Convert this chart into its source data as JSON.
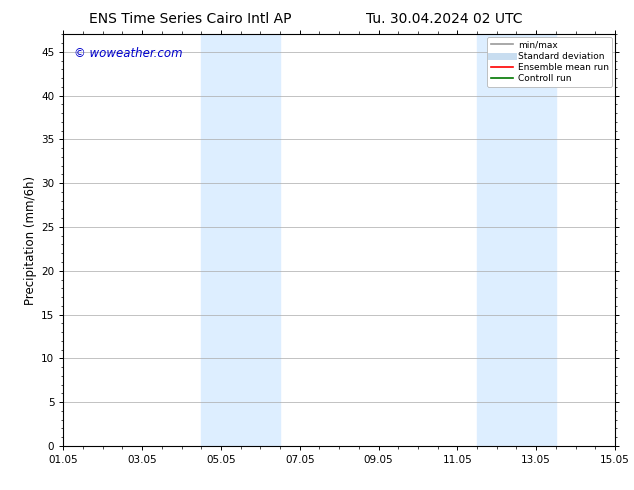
{
  "title_left": "ENS Time Series Cairo Intl AP",
  "title_right": "Tu. 30.04.2024 02 UTC",
  "xlabel": "",
  "ylabel": "Precipitation (mm/6h)",
  "ylim": [
    0,
    47
  ],
  "yticks": [
    0,
    5,
    10,
    15,
    20,
    25,
    30,
    35,
    40,
    45
  ],
  "xtick_labels": [
    "01.05",
    "03.05",
    "05.05",
    "07.05",
    "09.05",
    "11.05",
    "13.05",
    "15.05"
  ],
  "xtick_positions": [
    0,
    2,
    4,
    6,
    8,
    10,
    12,
    14
  ],
  "xlim": [
    0,
    14
  ],
  "shaded_regions": [
    {
      "start": 3.5,
      "end": 5.5
    },
    {
      "start": 10.5,
      "end": 12.5
    }
  ],
  "shaded_color": "#ddeeff",
  "background_color": "#ffffff",
  "watermark_text": "© woweather.com",
  "watermark_color": "#0000cc",
  "legend_entries": [
    {
      "label": "min/max",
      "color": "#999999",
      "lw": 1.2,
      "style": "solid"
    },
    {
      "label": "Standard deviation",
      "color": "#c8ddf0",
      "lw": 5,
      "style": "solid"
    },
    {
      "label": "Ensemble mean run",
      "color": "#ff0000",
      "lw": 1.2,
      "style": "solid"
    },
    {
      "label": "Controll run",
      "color": "#007700",
      "lw": 1.2,
      "style": "solid"
    }
  ],
  "title_fontsize": 10,
  "tick_fontsize": 7.5,
  "ylabel_fontsize": 8.5,
  "watermark_fontsize": 8.5
}
